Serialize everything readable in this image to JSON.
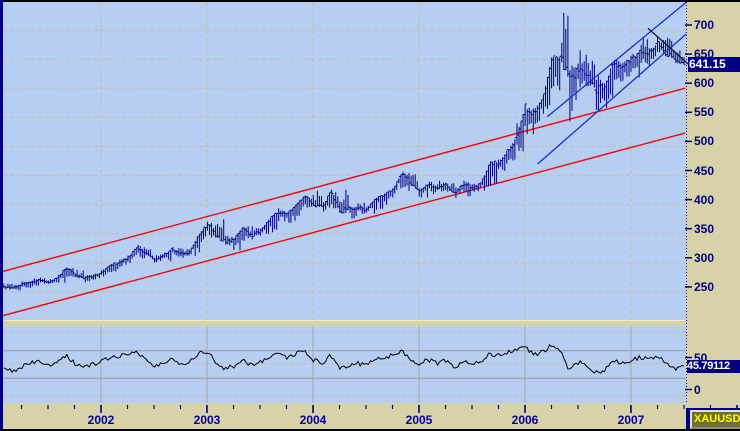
{
  "window": {
    "symbol_tab": "XAUUSD"
  },
  "colors": {
    "frame_tan": "#d8d2a8",
    "plot_blue": "#b6cef2",
    "grid_dash": "#c8bf9e",
    "navy": "#000080",
    "red_line": "#ff0000",
    "blue_trendline": "#1a2fd0",
    "black_line": "#1a1a1a",
    "gray_band": "#a0a0a0",
    "box_bg": "#000080",
    "box_text": "#ffffff",
    "tab_text": "#ffff00",
    "tab_bg": "#6e6e35"
  },
  "price_axis": {
    "labels": [
      700,
      650,
      600,
      550,
      500,
      450,
      400,
      350,
      300,
      250
    ],
    "price_box": "641.15"
  },
  "indicator_axis": {
    "labels": [
      50,
      0
    ],
    "value_box": "45.79112"
  },
  "x_axis": {
    "years": [
      2002,
      2003,
      2004,
      2005,
      2006,
      2007
    ]
  },
  "chart_data": {
    "type": "bar",
    "style": "weekly-ohlc-bars",
    "symbol": "XAUUSD",
    "title": "Gold spot price (XAUUSD) weekly chart with linear regression channels and RSI-style oscillator",
    "ylim_main": [
      250,
      700
    ],
    "last_price": 641.15,
    "indicator_last_value": 45.79112,
    "time_start": 2001.083,
    "time_end": 2007.5,
    "monthly_anchors": {
      "first_month": "2001-02",
      "closes": [
        258,
        257,
        263,
        267,
        270,
        266,
        274,
        291,
        280,
        274,
        277,
        282,
        296,
        301,
        308,
        326,
        318,
        304,
        312,
        323,
        316,
        318,
        347,
        367,
        347,
        336,
        339,
        361,
        346,
        354,
        375,
        388,
        384,
        398,
        415,
        401,
        395,
        423,
        387,
        393,
        395,
        391,
        410,
        418,
        425,
        453,
        437,
        422,
        435,
        428,
        435,
        418,
        437,
        429,
        437,
        472,
        470,
        494,
        513,
        568,
        556,
        582,
        654,
        653,
        613,
        634,
        623,
        598,
        603,
        646,
        636,
        650,
        664,
        663,
        677,
        659,
        650,
        641.15
      ],
      "highs": [
        265,
        262,
        268,
        274,
        275,
        272,
        280,
        293,
        288,
        280,
        282,
        290,
        300,
        308,
        313,
        331,
        324,
        315,
        318,
        327,
        325,
        323,
        350,
        371,
        382,
        352,
        342,
        365,
        365,
        360,
        377,
        394,
        388,
        400,
        417,
        431,
        405,
        427,
        433,
        398,
        404,
        398,
        412,
        420,
        429,
        458,
        458,
        428,
        440,
        443,
        438,
        432,
        442,
        436,
        442,
        475,
        480,
        496,
        540,
        572,
        575,
        587,
        645,
        730,
        640,
        665,
        655,
        625,
        610,
        650,
        650,
        660,
        689,
        669,
        698,
        693,
        665,
        670
      ],
      "lows": [
        254,
        252,
        255,
        259,
        264,
        262,
        263,
        272,
        273,
        266,
        270,
        276,
        280,
        293,
        298,
        307,
        312,
        300,
        298,
        310,
        308,
        310,
        315,
        342,
        342,
        330,
        320,
        337,
        340,
        342,
        350,
        370,
        368,
        378,
        392,
        396,
        388,
        392,
        384,
        371,
        382,
        384,
        388,
        398,
        411,
        420,
        432,
        411,
        418,
        420,
        422,
        411,
        413,
        418,
        424,
        432,
        456,
        455,
        488,
        515,
        534,
        550,
        580,
        630,
        543,
        600,
        602,
        560,
        558,
        598,
        612,
        602,
        635,
        635,
        655,
        652,
        642,
        640
      ]
    },
    "indicator_monthly": [
      40,
      38,
      45,
      50,
      53,
      46,
      54,
      63,
      50,
      45,
      48,
      52,
      60,
      62,
      64,
      69,
      58,
      44,
      50,
      57,
      50,
      52,
      66,
      70,
      52,
      42,
      45,
      57,
      47,
      52,
      61,
      66,
      60,
      64,
      70,
      56,
      50,
      62,
      42,
      48,
      50,
      47,
      57,
      60,
      63,
      70,
      58,
      48,
      56,
      50,
      54,
      42,
      55,
      48,
      53,
      66,
      62,
      68,
      72,
      76,
      64,
      68,
      78,
      72,
      38,
      52,
      47,
      35,
      38,
      56,
      50,
      54,
      60,
      56,
      63,
      48,
      40,
      45.79112
    ],
    "indicator_bands": [
      70,
      27
    ],
    "indicator_gridlines": [
      0,
      50,
      100
    ],
    "trendlines": [
      {
        "name": "red-channel-upper",
        "color": "#ff0000",
        "t1": 2001.05,
        "p1": 284,
        "t2": 2007.51,
        "p2": 600,
        "clip": "main"
      },
      {
        "name": "red-channel-lower",
        "color": "#ff0000",
        "t1": 2001.05,
        "p1": 208,
        "t2": 2007.51,
        "p2": 523,
        "clip": "main"
      },
      {
        "name": "blue-channel-upper",
        "color": "#1a2fd0",
        "t1": 2006.21,
        "p1": 551,
        "t2": 2007.55,
        "p2": 752,
        "clip": "none"
      },
      {
        "name": "blue-channel-lower",
        "color": "#1a2fd0",
        "t1": 2006.12,
        "p1": 470,
        "t2": 2007.52,
        "p2": 693,
        "clip": "none"
      },
      {
        "name": "black-downtrend",
        "color": "#1a1a1a",
        "t1": 2007.16,
        "p1": 703,
        "t2": 2007.58,
        "p2": 635,
        "clip": "none"
      }
    ]
  }
}
